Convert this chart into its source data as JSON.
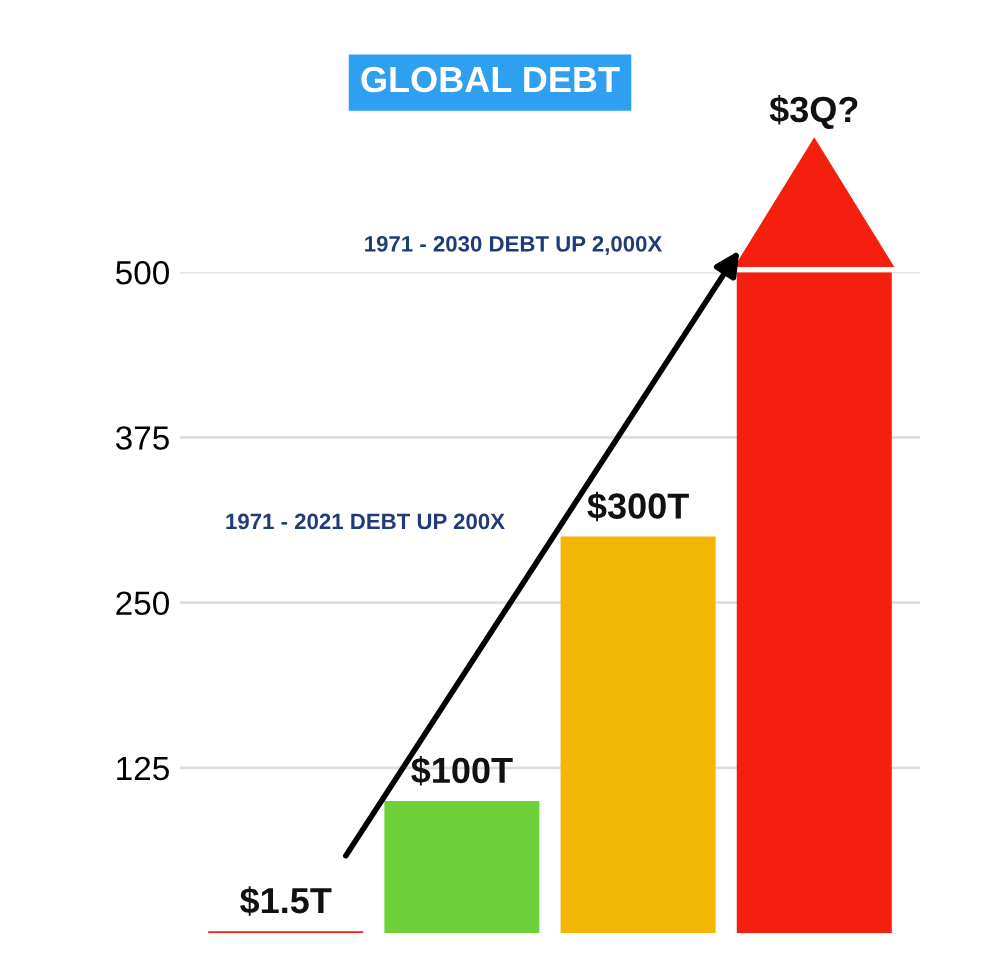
{
  "chart_data": {
    "type": "bar",
    "title": "GLOBAL DEBT",
    "categories": [
      null,
      null,
      null,
      null
    ],
    "values": [
      1.5,
      100,
      300,
      500
    ],
    "colors": [
      "#f41f0f",
      "#6fd13a",
      "#f2b705",
      "#f41f0f"
    ],
    "value_labels": [
      "$1.5T",
      "$100T",
      "$300T",
      null
    ],
    "annotations": [
      "1971 - 2030 DEBT UP 2,000X",
      "1971 - 2021 DEBT UP 200X",
      "$3Q?"
    ],
    "ylim": [
      0,
      500
    ],
    "yticks": [
      125,
      250,
      375,
      500
    ],
    "grid": "y"
  }
}
